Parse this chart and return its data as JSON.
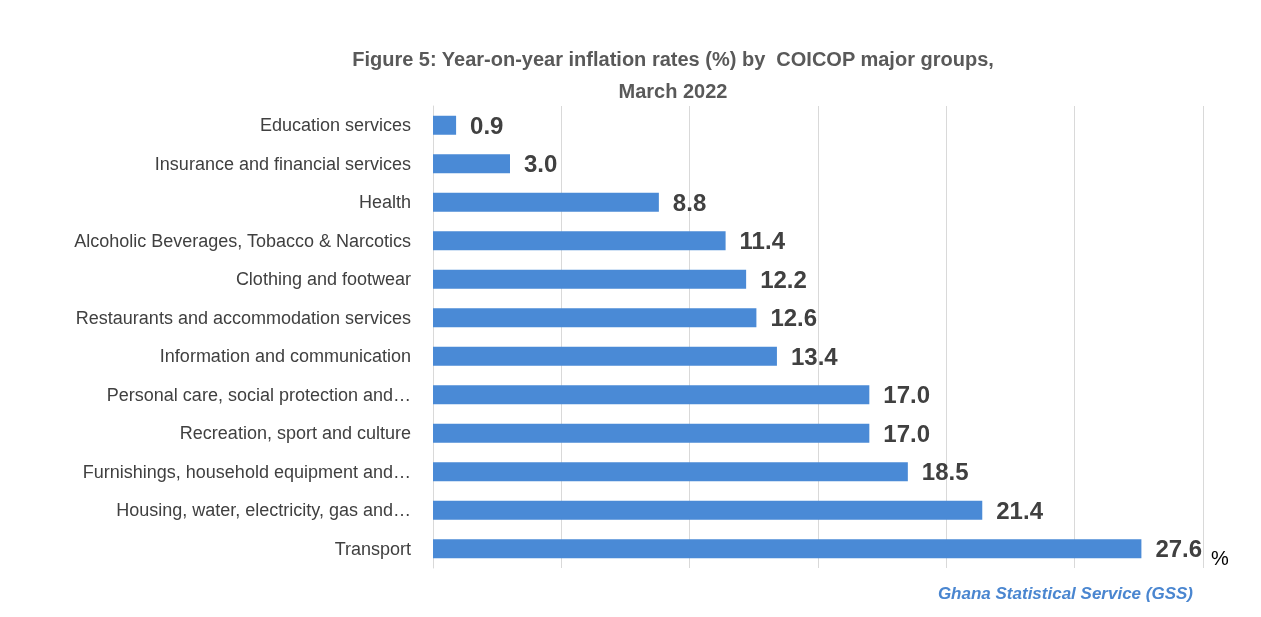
{
  "chart_data": {
    "type": "bar",
    "orientation": "horizontal",
    "title": "Figure 5: Year-on-year inflation rates (%) by  COICOP major groups,\nMarch 2022",
    "xlabel": "%",
    "categories": [
      "Education services",
      "Insurance and financial services",
      "Health",
      "Alcoholic Beverages, Tobacco & Narcotics",
      "Clothing and footwear",
      "Restaurants and accommodation services",
      "Information and communication",
      "Personal care, social protection and…",
      "Recreation, sport and culture",
      "Furnishings, household equipment and…",
      "Housing, water, electricity, gas and…",
      "Transport"
    ],
    "values": [
      0.9,
      3.0,
      8.8,
      11.4,
      12.2,
      12.6,
      13.4,
      17.0,
      17.0,
      18.5,
      21.4,
      27.6
    ],
    "value_labels": [
      "0.9",
      "3.0",
      "8.8",
      "11.4",
      "12.2",
      "12.6",
      "13.4",
      "17.0",
      "17.0",
      "18.5",
      "21.4",
      "27.6"
    ],
    "color": "#4a8ad6",
    "xlim": [
      0,
      30
    ],
    "xticks": [
      {
        "value": 0,
        "label": null
      },
      {
        "value": 5,
        "label": null
      },
      {
        "value": 10,
        "label": null
      },
      {
        "value": 15,
        "label": null
      },
      {
        "value": 20,
        "label": null
      },
      {
        "value": 25,
        "label": null
      },
      {
        "value": 30,
        "label": null
      }
    ],
    "tick_labels": "y",
    "grid": "x",
    "annotations": [
      "Ghana Statistical Service (GSS)"
    ]
  }
}
